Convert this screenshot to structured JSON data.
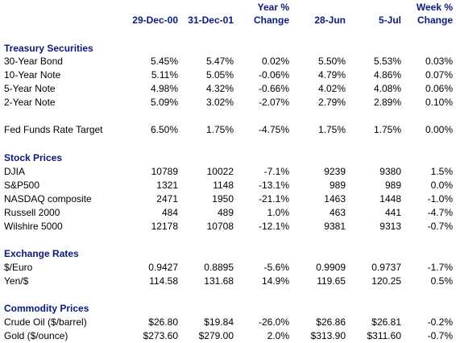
{
  "header": {
    "col1": "29-Dec-00",
    "col2": "31-Dec-01",
    "col3_line1": "Year %",
    "col3_line2": "Change",
    "col4": "28-Jun",
    "col5": "5-Jul",
    "col6_line1": "Week %",
    "col6_line2": "Change"
  },
  "sections": {
    "treasury": {
      "title": "Treasury Securities",
      "rows": [
        {
          "label": "30-Year Bond",
          "v1": "5.45%",
          "v2": "5.47%",
          "v3": "0.02%",
          "v4": "5.50%",
          "v5": "5.53%",
          "v6": "0.03%"
        },
        {
          "label": "10-Year Note",
          "v1": "5.11%",
          "v2": "5.05%",
          "v3": "-0.06%",
          "v4": "4.79%",
          "v5": "4.86%",
          "v6": "0.07%"
        },
        {
          "label": "5-Year Note",
          "v1": "4.98%",
          "v2": "4.32%",
          "v3": "-0.66%",
          "v4": "4.02%",
          "v5": "4.08%",
          "v6": "0.06%"
        },
        {
          "label": "2-Year Note",
          "v1": "5.09%",
          "v2": "3.02%",
          "v3": "-2.07%",
          "v4": "2.79%",
          "v5": "2.89%",
          "v6": "0.10%"
        }
      ]
    },
    "fed": {
      "row": {
        "label": "Fed Funds Rate Target",
        "v1": "6.50%",
        "v2": "1.75%",
        "v3": "-4.75%",
        "v4": "1.75%",
        "v5": "1.75%",
        "v6": "0.00%"
      }
    },
    "stocks": {
      "title": "Stock Prices",
      "rows": [
        {
          "label": "DJIA",
          "v1": "10789",
          "v2": "10022",
          "v3": "-7.1%",
          "v4": "9239",
          "v5": "9380",
          "v6": "1.5%"
        },
        {
          "label": "S&P500",
          "v1": "1321",
          "v2": "1148",
          "v3": "-13.1%",
          "v4": "989",
          "v5": "989",
          "v6": "0.0%"
        },
        {
          "label": "NASDAQ composite",
          "v1": "2471",
          "v2": "1950",
          "v3": "-21.1%",
          "v4": "1463",
          "v5": "1448",
          "v6": "-1.0%"
        },
        {
          "label": "Russell 2000",
          "v1": "484",
          "v2": "489",
          "v3": "1.0%",
          "v4": "463",
          "v5": "441",
          "v6": "-4.7%"
        },
        {
          "label": "Wilshire 5000",
          "v1": "12178",
          "v2": "10708",
          "v3": "-12.1%",
          "v4": "9381",
          "v5": "9313",
          "v6": "-0.7%"
        }
      ]
    },
    "exchange": {
      "title": "Exchange Rates",
      "rows": [
        {
          "label": "$/Euro",
          "v1": "0.9427",
          "v2": "0.8895",
          "v3": "-5.6%",
          "v4": "0.9909",
          "v5": "0.9737",
          "v6": "-1.7%"
        },
        {
          "label": "Yen/$",
          "v1": "114.58",
          "v2": "131.68",
          "v3": "14.9%",
          "v4": "119.65",
          "v5": "120.25",
          "v6": "0.5%"
        }
      ]
    },
    "commodities": {
      "title": "Commodity Prices",
      "rows": [
        {
          "label": "Crude Oil ($/barrel)",
          "v1": "$26.80",
          "v2": "$19.84",
          "v3": "-26.0%",
          "v4": "$26.86",
          "v5": "$26.81",
          "v6": "-0.2%"
        },
        {
          "label": "Gold ($/ounce)",
          "v1": "$273.60",
          "v2": "$279.00",
          "v3": "2.0%",
          "v4": "$313.90",
          "v5": "$311.60",
          "v6": "-0.7%"
        }
      ]
    }
  }
}
